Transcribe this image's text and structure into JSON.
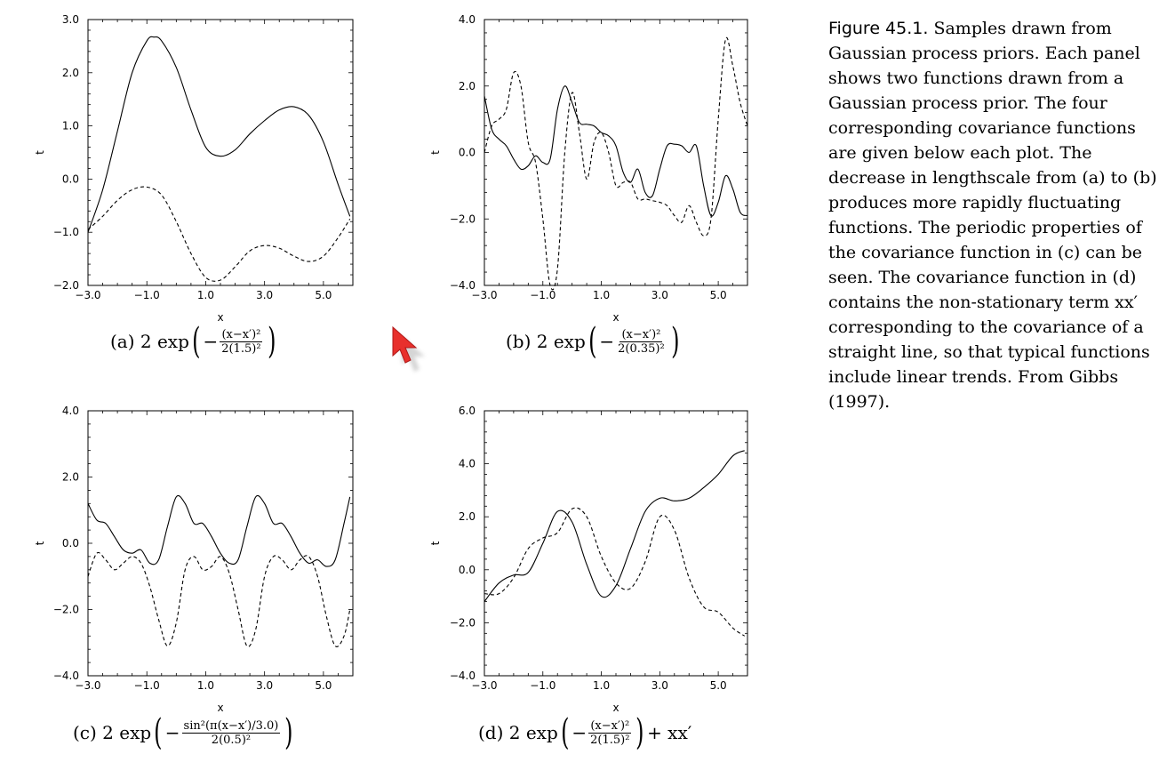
{
  "figure": {
    "label": "Figure 45.1.",
    "text": "Samples drawn from Gaussian process priors. Each panel shows two functions drawn from a Gaussian process prior. The four corresponding covariance functions are given below each plot. The decrease in lengthscale from (a) to (b) produces more rapidly fluctuating functions. The periodic properties of the covariance function in (c) can be seen. The covariance function in (d) contains the non-stationary term xx′ corresponding to the covariance of a straight line, so that typical functions include linear trends. From Gibbs (1997)."
  },
  "captions": {
    "a": {
      "prefix": "(a) 2 exp",
      "num": "(x−x′)²",
      "den": "2(1.5)²",
      "suffix": ""
    },
    "b": {
      "prefix": "(b) 2 exp",
      "num": "(x−x′)²",
      "den": "2(0.35)²",
      "suffix": ""
    },
    "c": {
      "prefix": "(c) 2 exp",
      "num": "sin²(π(x−x′)/3.0)",
      "den": "2(0.5)²",
      "suffix": ""
    },
    "d": {
      "prefix": "(d) 2 exp",
      "num": "(x−x′)²",
      "den": "2(1.5)²",
      "suffix": "+ xx′"
    }
  },
  "chart_data": [
    {
      "type": "line",
      "panel": "a",
      "xlabel": "x",
      "ylabel": "t",
      "xlim": [
        -3.0,
        6.0
      ],
      "ylim": [
        -2.0,
        3.0
      ],
      "xticks": [
        "-3.0",
        "-1.0",
        "1.0",
        "3.0",
        "5.0"
      ],
      "yticks": [
        "-2.0",
        "-1.0",
        "0.0",
        "1.0",
        "2.0",
        "3.0"
      ],
      "series": [
        {
          "style": "solid",
          "x": [
            -3.0,
            -2.5,
            -2.0,
            -1.5,
            -1.0,
            -0.75,
            -0.5,
            0.0,
            0.5,
            1.0,
            1.5,
            2.0,
            2.5,
            3.0,
            3.5,
            4.0,
            4.5,
            5.0,
            5.5,
            5.9
          ],
          "y": [
            -1.0,
            -0.2,
            0.9,
            2.0,
            2.6,
            2.67,
            2.6,
            2.1,
            1.3,
            0.6,
            0.43,
            0.55,
            0.85,
            1.1,
            1.3,
            1.36,
            1.2,
            0.7,
            -0.1,
            -0.7
          ]
        },
        {
          "style": "dashed",
          "x": [
            -3.0,
            -2.5,
            -2.0,
            -1.5,
            -1.0,
            -0.5,
            0.0,
            0.5,
            1.0,
            1.5,
            2.0,
            2.5,
            3.0,
            3.5,
            4.0,
            4.5,
            5.0,
            5.5,
            5.9
          ],
          "y": [
            -0.95,
            -0.7,
            -0.4,
            -0.2,
            -0.15,
            -0.3,
            -0.8,
            -1.4,
            -1.85,
            -1.9,
            -1.65,
            -1.35,
            -1.25,
            -1.3,
            -1.45,
            -1.55,
            -1.45,
            -1.1,
            -0.75
          ]
        }
      ]
    },
    {
      "type": "line",
      "panel": "b",
      "xlabel": "x",
      "ylabel": "t",
      "xlim": [
        -3.0,
        6.0
      ],
      "ylim": [
        -4.0,
        4.0
      ],
      "xticks": [
        "-3.0",
        "-1.0",
        "1.0",
        "3.0",
        "5.0"
      ],
      "yticks": [
        "-4.0",
        "-2.0",
        "0.0",
        "2.0",
        "4.0"
      ],
      "series": [
        {
          "style": "solid",
          "x": [
            -3.0,
            -2.75,
            -2.5,
            -2.25,
            -2.0,
            -1.75,
            -1.5,
            -1.25,
            -1.0,
            -0.75,
            -0.5,
            -0.25,
            0.0,
            0.25,
            0.5,
            0.75,
            1.0,
            1.25,
            1.5,
            1.75,
            2.0,
            2.25,
            2.5,
            2.75,
            3.0,
            3.25,
            3.5,
            3.75,
            4.0,
            4.25,
            4.5,
            4.75,
            5.0,
            5.25,
            5.5,
            5.75,
            6.0
          ],
          "y": [
            1.7,
            0.7,
            0.4,
            0.2,
            -0.2,
            -0.5,
            -0.4,
            -0.1,
            -0.3,
            -0.2,
            1.3,
            2.0,
            1.5,
            0.9,
            0.85,
            0.8,
            0.6,
            0.5,
            0.2,
            -0.6,
            -0.9,
            -0.5,
            -1.2,
            -1.3,
            -0.5,
            0.2,
            0.25,
            0.2,
            0.0,
            0.2,
            -1.0,
            -1.9,
            -1.5,
            -0.7,
            -1.1,
            -1.8,
            -1.9
          ]
        },
        {
          "style": "dashed",
          "x": [
            -3.0,
            -2.75,
            -2.5,
            -2.25,
            -2.0,
            -1.75,
            -1.5,
            -1.25,
            -1.0,
            -0.75,
            -0.5,
            -0.25,
            0.0,
            0.25,
            0.5,
            0.75,
            1.0,
            1.25,
            1.5,
            1.75,
            2.0,
            2.25,
            2.5,
            2.75,
            3.0,
            3.25,
            3.5,
            3.75,
            4.0,
            4.25,
            4.5,
            4.75,
            5.0,
            5.25,
            5.5,
            5.75,
            6.0
          ],
          "y": [
            0.0,
            0.8,
            1.0,
            1.3,
            2.4,
            2.0,
            0.3,
            -0.3,
            -2.0,
            -4.0,
            -3.5,
            0.0,
            1.8,
            0.6,
            -0.8,
            0.3,
            0.6,
            0.0,
            -1.0,
            -0.9,
            -0.9,
            -1.4,
            -1.4,
            -1.45,
            -1.5,
            -1.6,
            -1.9,
            -2.1,
            -1.6,
            -2.1,
            -2.5,
            -2.0,
            1.0,
            3.4,
            2.6,
            1.5,
            0.8
          ]
        }
      ]
    },
    {
      "type": "line",
      "panel": "c",
      "xlabel": "x",
      "ylabel": "t",
      "xlim": [
        -3.0,
        6.0
      ],
      "ylim": [
        -4.0,
        4.0
      ],
      "xticks": [
        "-3.0",
        "-1.0",
        "1.0",
        "3.0",
        "5.0"
      ],
      "yticks": [
        "-4.0",
        "-2.0",
        "0.0",
        "2.0",
        "4.0"
      ],
      "series": [
        {
          "style": "solid",
          "x": [
            -3.0,
            -2.7,
            -2.4,
            -2.1,
            -1.8,
            -1.5,
            -1.2,
            -0.9,
            -0.6,
            -0.3,
            0.0,
            0.3,
            0.6,
            0.9,
            1.2,
            1.5,
            1.8,
            2.1,
            2.4,
            2.7,
            3.0,
            3.3,
            3.6,
            3.9,
            4.2,
            4.5,
            4.8,
            5.1,
            5.4,
            5.7,
            5.9
          ],
          "y": [
            1.2,
            0.7,
            0.6,
            0.2,
            -0.2,
            -0.3,
            -0.2,
            -0.6,
            -0.5,
            0.5,
            1.4,
            1.2,
            0.6,
            0.6,
            0.2,
            -0.3,
            -0.6,
            -0.5,
            0.5,
            1.4,
            1.2,
            0.6,
            0.6,
            0.2,
            -0.3,
            -0.6,
            -0.5,
            -0.7,
            -0.5,
            0.6,
            1.4
          ]
        },
        {
          "style": "dashed",
          "x": [
            -3.0,
            -2.7,
            -2.4,
            -2.1,
            -1.8,
            -1.5,
            -1.2,
            -0.9,
            -0.6,
            -0.3,
            0.0,
            0.3,
            0.6,
            0.9,
            1.2,
            1.5,
            1.8,
            2.1,
            2.4,
            2.7,
            3.0,
            3.3,
            3.6,
            3.9,
            4.2,
            4.5,
            4.8,
            5.1,
            5.4,
            5.7,
            5.9
          ],
          "y": [
            -1.0,
            -0.3,
            -0.5,
            -0.8,
            -0.6,
            -0.4,
            -0.6,
            -1.3,
            -2.3,
            -3.1,
            -2.4,
            -0.8,
            -0.4,
            -0.8,
            -0.7,
            -0.4,
            -0.9,
            -2.0,
            -3.1,
            -2.6,
            -1.0,
            -0.4,
            -0.5,
            -0.8,
            -0.5,
            -0.4,
            -1.0,
            -2.2,
            -3.1,
            -2.8,
            -2.0
          ]
        }
      ]
    },
    {
      "type": "line",
      "panel": "d",
      "xlabel": "x",
      "ylabel": "t",
      "xlim": [
        -3.0,
        6.0
      ],
      "ylim": [
        -4.0,
        6.0
      ],
      "xticks": [
        "-3.0",
        "-1.0",
        "1.0",
        "3.0",
        "5.0"
      ],
      "yticks": [
        "-4.0",
        "-2.0",
        "0.0",
        "2.0",
        "4.0",
        "6.0"
      ],
      "series": [
        {
          "style": "solid",
          "x": [
            -3.0,
            -2.5,
            -2.0,
            -1.5,
            -1.0,
            -0.5,
            0.0,
            0.5,
            1.0,
            1.5,
            2.0,
            2.5,
            3.0,
            3.5,
            4.0,
            4.5,
            5.0,
            5.5,
            5.9
          ],
          "y": [
            -1.2,
            -0.5,
            -0.2,
            -0.1,
            1.0,
            2.2,
            1.8,
            0.2,
            -1.0,
            -0.6,
            0.8,
            2.2,
            2.7,
            2.6,
            2.7,
            3.1,
            3.6,
            4.3,
            4.5
          ]
        },
        {
          "style": "dashed",
          "x": [
            -3.0,
            -2.5,
            -2.0,
            -1.5,
            -1.0,
            -0.5,
            0.0,
            0.5,
            1.0,
            1.5,
            2.0,
            2.5,
            3.0,
            3.5,
            4.0,
            4.5,
            5.0,
            5.5,
            5.9
          ],
          "y": [
            -0.9,
            -0.9,
            -0.3,
            0.8,
            1.2,
            1.4,
            2.3,
            2.0,
            0.5,
            -0.5,
            -0.7,
            0.3,
            2.0,
            1.5,
            -0.3,
            -1.4,
            -1.6,
            -2.2,
            -2.5
          ]
        }
      ]
    }
  ]
}
